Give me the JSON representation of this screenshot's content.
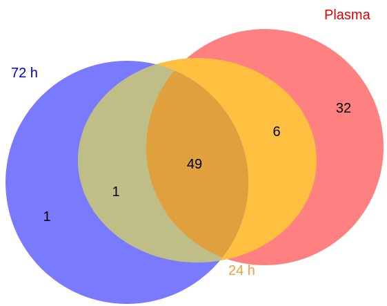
{
  "sets": {
    "h72": {
      "label": "72 h",
      "color": "#0000ff",
      "label_color": "#0000cc"
    },
    "plasma": {
      "label": "Plasma",
      "color": "#ff0000",
      "label_color": "#e00000"
    },
    "h24": {
      "label": "24 h",
      "color": "#ffc000",
      "label_color": "#f0a040"
    }
  },
  "regions": {
    "h72_only": "1",
    "h72_h24": "1",
    "all_three": "49",
    "plasma_h24": "6",
    "plasma_only": "32"
  }
}
